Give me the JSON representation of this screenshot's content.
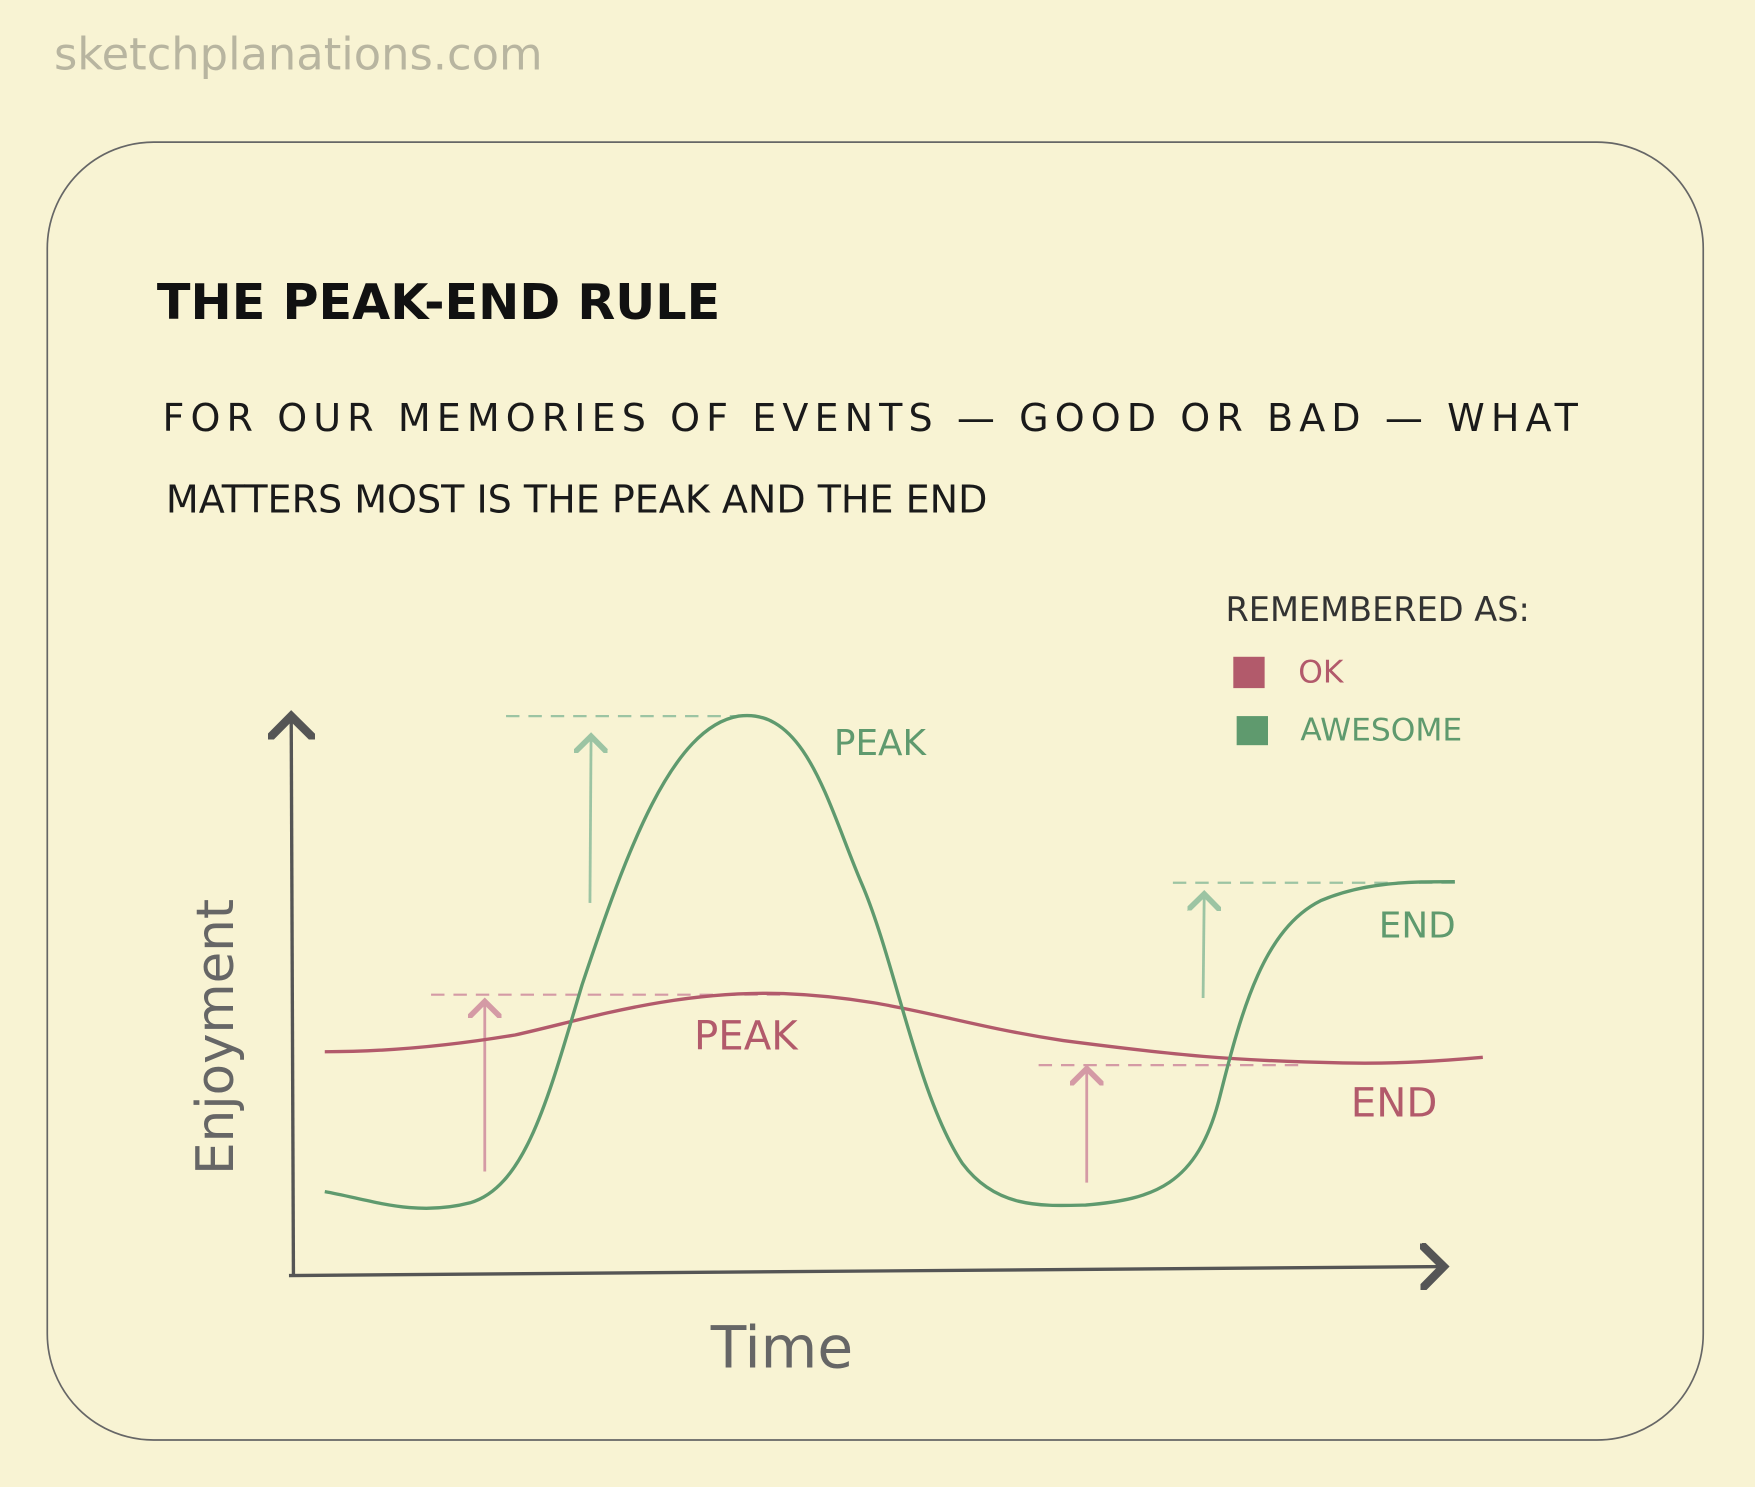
{
  "watermark": "sketchplanations.com",
  "title": "THE PEAK-END RULE",
  "subtitle": {
    "line1": "FOR OUR MEMORIES OF EVENTS — GOOD OR BAD — WHAT",
    "line2": "MATTERS MOST IS THE PEAK AND THE END"
  },
  "legend": {
    "heading": "REMEMBERED AS:",
    "items": [
      {
        "label": "OK",
        "color": "#b25a6b"
      },
      {
        "label": "AWESOME",
        "color": "#5f9a6e"
      }
    ]
  },
  "axes": {
    "y_label": "Enjoyment",
    "x_label": "Time"
  },
  "annotations": {
    "awesome_peak": "PEAK",
    "awesome_end": "END",
    "ok_peak": "PEAK",
    "ok_end": "END"
  },
  "colors": {
    "background": "#f8f3d3",
    "ink": "#222222",
    "axis": "#555555",
    "ok": "#b25a6b",
    "awesome": "#5f9a6e"
  }
}
